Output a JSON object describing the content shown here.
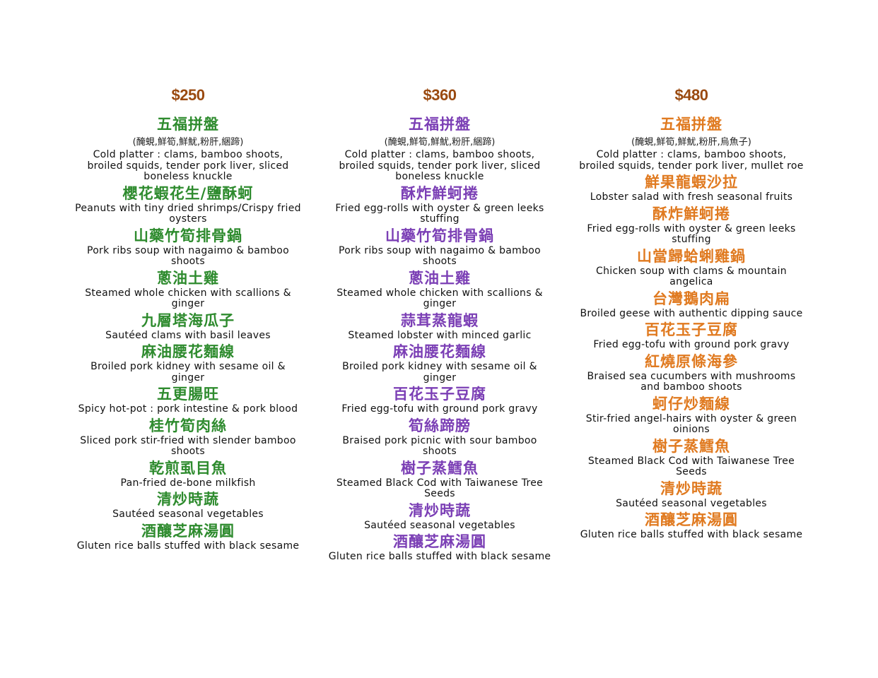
{
  "columns": [
    {
      "price": "$250",
      "color": "#2e8b2e",
      "dishes": [
        {
          "cn": "五福拼盤",
          "sub": "(醃蜆,鮮筍,鮮魷,粉肝,綑蹄)",
          "en": "Cold platter : clams, bamboo shoots, broiled squids, tender pork liver, sliced boneless knuckle"
        },
        {
          "cn": "櫻花蝦花生/鹽酥蚵",
          "sub": "",
          "en": "Peanuts with tiny dried shrimps/Crispy fried oysters"
        },
        {
          "cn": "山藥竹筍排骨鍋",
          "sub": "",
          "en": "Pork ribs soup with nagaimo & bamboo shoots"
        },
        {
          "cn": "蔥油土雞",
          "sub": "",
          "en": "Steamed whole chicken with scallions & ginger"
        },
        {
          "cn": "九層塔海瓜子",
          "sub": "",
          "en": "Sautéed clams with basil leaves"
        },
        {
          "cn": "麻油腰花麵線",
          "sub": "",
          "en": "Broiled pork kidney with sesame oil & ginger"
        },
        {
          "cn": "五更腸旺",
          "sub": "",
          "en": "Spicy hot-pot : pork intestine & pork blood"
        },
        {
          "cn": "桂竹筍肉絲",
          "sub": "",
          "en": "Sliced pork stir-fried with slender bamboo shoots"
        },
        {
          "cn": "乾煎虱目魚",
          "sub": "",
          "en": "Pan-fried de-bone milkfish"
        },
        {
          "cn": "清炒時蔬",
          "sub": "",
          "en": "Sautéed seasonal vegetables"
        },
        {
          "cn": "酒釀芝麻湯圓",
          "sub": "",
          "en": "Gluten rice balls stuffed with black sesame"
        }
      ]
    },
    {
      "price": "$360",
      "color": "#7b3fb5",
      "dishes": [
        {
          "cn": "五福拼盤",
          "sub": "(醃蜆,鮮筍,鮮魷,粉肝,綑蹄)",
          "en": "Cold platter : clams, bamboo shoots, broiled squids, tender pork liver, sliced boneless knuckle"
        },
        {
          "cn": "酥炸鮮蚵捲",
          "sub": "",
          "en": "Fried egg-rolls with oyster & green leeks stuffing"
        },
        {
          "cn": "山藥竹筍排骨鍋",
          "sub": "",
          "en": "Pork ribs soup with nagaimo & bamboo shoots"
        },
        {
          "cn": "蔥油土雞",
          "sub": "",
          "en": "Steamed whole chicken with scallions & ginger"
        },
        {
          "cn": "蒜茸蒸龍蝦",
          "sub": "",
          "en": "Steamed lobster with minced garlic"
        },
        {
          "cn": "麻油腰花麵線",
          "sub": "",
          "en": "Broiled pork kidney with sesame oil & ginger"
        },
        {
          "cn": "百花玉子豆腐",
          "sub": "",
          "en": "Fried egg-tofu with ground pork gravy"
        },
        {
          "cn": "筍絲蹄膀",
          "sub": "",
          "en": "Braised pork picnic with sour bamboo shoots"
        },
        {
          "cn": "樹子蒸鱈魚",
          "sub": "",
          "en": "Steamed Black Cod with Taiwanese Tree Seeds"
        },
        {
          "cn": "清炒時蔬",
          "sub": "",
          "en": "Sautéed seasonal vegetables"
        },
        {
          "cn": "酒釀芝麻湯圓",
          "sub": "",
          "en": "Gluten rice balls stuffed with black sesame"
        }
      ]
    },
    {
      "price": "$480",
      "color": "#e07a20",
      "dishes": [
        {
          "cn": "五福拼盤",
          "sub": "(醃蜆,鮮筍,鮮魷,粉肝,烏魚子)",
          "en": "Cold platter : clams, bamboo shoots, broiled squids, tender pork liver, mullet roe"
        },
        {
          "cn": "鮮果龍蝦沙拉",
          "sub": "",
          "en": "Lobster salad with fresh seasonal fruits"
        },
        {
          "cn": "酥炸鮮蚵捲",
          "sub": "",
          "en": "Fried egg-rolls with oyster & green leeks stuffing"
        },
        {
          "cn": "山當歸蛤蜊雞鍋",
          "sub": "",
          "en": "Chicken soup with clams & mountain angelica"
        },
        {
          "cn": "台灣鵝肉扁",
          "sub": "",
          "en": "Broiled geese with authentic dipping sauce"
        },
        {
          "cn": "百花玉子豆腐",
          "sub": "",
          "en": "Fried egg-tofu with ground pork gravy"
        },
        {
          "cn": "紅燒原條海參",
          "sub": "",
          "en": "Braised sea cucumbers with mushrooms and bamboo shoots"
        },
        {
          "cn": "蚵仔炒麵線",
          "sub": "",
          "en": "Stir-fried angel-hairs with oyster & green oinions"
        },
        {
          "cn": "樹子蒸鱈魚",
          "sub": "",
          "en": "Steamed Black Cod with Taiwanese Tree Seeds"
        },
        {
          "cn": "清炒時蔬",
          "sub": "",
          "en": "Sautéed seasonal vegetables"
        },
        {
          "cn": "酒釀芝麻湯圓",
          "sub": "",
          "en": "Gluten rice balls stuffed with black sesame"
        }
      ]
    }
  ]
}
